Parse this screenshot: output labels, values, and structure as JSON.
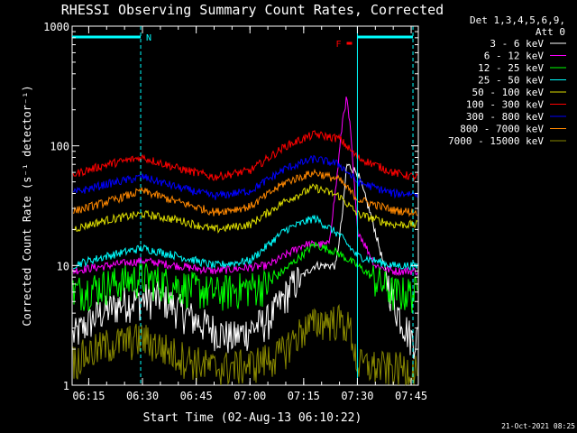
{
  "chart_data": {
    "type": "line",
    "title": "RHESSI Observing Summary Count Rates, Corrected",
    "xlabel": "Start Time (02-Aug-13 06:10:22)",
    "ylabel": "Corrected Count Rate (s⁻¹ detector⁻¹)",
    "y_scale": "log",
    "ylim": [
      1,
      1000
    ],
    "y_ticks": [
      {
        "value": 1,
        "label": "1"
      },
      {
        "value": 10,
        "label": "10"
      },
      {
        "value": 100,
        "label": "100"
      },
      {
        "value": 1000,
        "label": "1000"
      }
    ],
    "xlim": [
      "06:10:22",
      "07:47:00"
    ],
    "x_ticks": [
      "06:15",
      "06:30",
      "06:45",
      "07:00",
      "07:15",
      "07:30",
      "07:45"
    ],
    "grid": false,
    "legend_header": [
      "Det 1,3,4,5,6,9,",
      "Att 0"
    ],
    "legend_position": "top-right outside",
    "series": [
      {
        "name": "3 - 6 keV",
        "color": "#ffffff",
        "x": [
          "06:10",
          "06:18",
          "06:25",
          "06:35",
          "06:45",
          "06:55",
          "07:05",
          "07:12",
          "07:18",
          "07:24",
          "07:26",
          "07:27",
          "07:30",
          "07:34",
          "07:40",
          "07:45",
          "07:46"
        ],
        "y": [
          2.5,
          4.0,
          5.0,
          5.5,
          3.5,
          2.5,
          3.5,
          7.0,
          10,
          10,
          30,
          70,
          60,
          25,
          5,
          2.5,
          2.5
        ]
      },
      {
        "name": "6 - 12 keV",
        "color": "#ff00ff",
        "x": [
          "06:10",
          "06:30",
          "06:50",
          "07:05",
          "07:15",
          "07:22",
          "07:24",
          "07:26",
          "07:27",
          "07:28",
          "07:30",
          "07:35",
          "07:40",
          "07:45",
          "07:46"
        ],
        "y": [
          9,
          11,
          9,
          10,
          15,
          15,
          45,
          180,
          250,
          140,
          20,
          10,
          9,
          9,
          9
        ]
      },
      {
        "name": "12 - 25 keV",
        "color": "#00ff00",
        "x": [
          "06:10",
          "06:20",
          "06:30",
          "06:50",
          "07:05",
          "07:18",
          "07:24",
          "07:30",
          "07:40",
          "07:46"
        ],
        "y": [
          6,
          7,
          8,
          6,
          7,
          15,
          13,
          10,
          6,
          6
        ]
      },
      {
        "name": "25 - 50 keV",
        "color": "#00ffff",
        "x": [
          "06:10",
          "06:20",
          "06:30",
          "06:40",
          "06:50",
          "07:00",
          "07:10",
          "07:18",
          "07:25",
          "07:30",
          "07:40",
          "07:46"
        ],
        "y": [
          10,
          12,
          14,
          12,
          10,
          11,
          20,
          25,
          18,
          12,
          10,
          10
        ]
      },
      {
        "name": "50 - 100 keV",
        "color": "#dddd00",
        "x": [
          "06:10",
          "06:20",
          "06:30",
          "06:40",
          "06:50",
          "07:00",
          "07:10",
          "07:18",
          "07:25",
          "07:30",
          "07:40",
          "07:46"
        ],
        "y": [
          20,
          24,
          27,
          24,
          20,
          22,
          35,
          45,
          38,
          27,
          22,
          22
        ]
      },
      {
        "name": "100 - 300 keV",
        "color": "#ff0000",
        "x": [
          "06:10",
          "06:20",
          "06:30",
          "06:40",
          "06:50",
          "07:00",
          "07:10",
          "07:18",
          "07:25",
          "07:30",
          "07:40",
          "07:46"
        ],
        "y": [
          57,
          70,
          80,
          65,
          55,
          62,
          100,
          125,
          115,
          80,
          60,
          55
        ]
      },
      {
        "name": "300 - 800 keV",
        "color": "#0000ff",
        "x": [
          "06:10",
          "06:20",
          "06:30",
          "06:40",
          "06:50",
          "07:00",
          "07:10",
          "07:18",
          "07:25",
          "07:30",
          "07:40",
          "07:46"
        ],
        "y": [
          40,
          48,
          55,
          45,
          38,
          42,
          65,
          78,
          70,
          50,
          40,
          40
        ]
      },
      {
        "name": "800 - 7000 keV",
        "color": "#ff8800",
        "x": [
          "06:10",
          "06:20",
          "06:30",
          "06:40",
          "06:50",
          "07:00",
          "07:10",
          "07:18",
          "07:25",
          "07:30",
          "07:40",
          "07:46"
        ],
        "y": [
          28,
          34,
          42,
          34,
          28,
          31,
          50,
          60,
          52,
          36,
          29,
          28
        ]
      },
      {
        "name": "7000 - 15000 keV",
        "color": "#888800",
        "x": [
          "06:10",
          "06:20",
          "06:30",
          "06:40",
          "06:50",
          "07:00",
          "07:08",
          "07:15",
          "07:20",
          "07:25",
          "07:28",
          "07:30",
          "07:40",
          "07:46"
        ],
        "y": [
          1.6,
          2.2,
          2.5,
          1.8,
          1.4,
          1.5,
          1.8,
          3.0,
          3.5,
          3.5,
          3.0,
          1.5,
          1.4,
          1.4
        ]
      }
    ],
    "annotations": [
      {
        "label": "N",
        "color": "#00ffff",
        "x_start": "06:10:22",
        "x_end": "06:29:30"
      },
      {
        "label": "",
        "color": "#00ffff",
        "x_start": "07:30:00",
        "x_end": "07:45:30"
      },
      {
        "label": "F",
        "color": "#ff0000",
        "x_start": "07:27:00",
        "x_end": "07:28:30"
      }
    ],
    "vertical_lines": [
      {
        "x": "06:29:30",
        "color": "#00ffff",
        "style": "dashed"
      },
      {
        "x": "07:30:00",
        "color": "#00ffff",
        "style": "solid"
      },
      {
        "x": "07:45:30",
        "color": "#00ffff",
        "style": "dashed"
      }
    ],
    "footer": "21-Oct-2021 08:25"
  }
}
